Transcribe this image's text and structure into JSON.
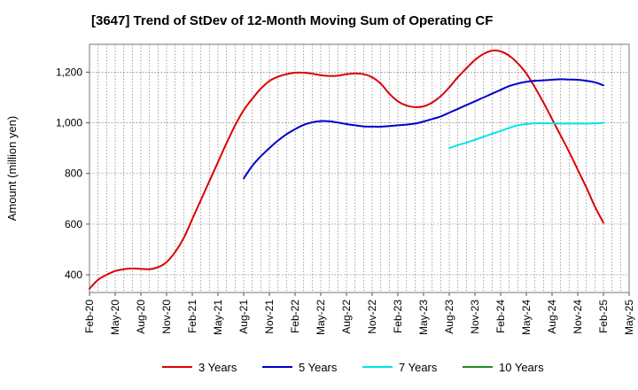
{
  "chart_data": {
    "type": "line",
    "title": "[3647]  Trend of StDev of 12-Month Moving Sum of Operating CF",
    "xlabel": "",
    "ylabel": "Amount (million yen)",
    "ylim": [
      330,
      1310
    ],
    "yticks": [
      400,
      600,
      800,
      1000,
      1200
    ],
    "ytick_labels": [
      "400",
      "600",
      "800",
      "1,000",
      "1,200"
    ],
    "xticks": [
      "Feb-20",
      "May-20",
      "Aug-20",
      "Nov-20",
      "Feb-21",
      "May-21",
      "Aug-21",
      "Nov-21",
      "Feb-22",
      "May-22",
      "Aug-22",
      "Nov-22",
      "Feb-23",
      "May-23",
      "Aug-23",
      "Nov-23",
      "Feb-24",
      "May-24",
      "Aug-24",
      "Nov-24",
      "Feb-25",
      "May-25"
    ],
    "grid": true,
    "legend_position": "bottom",
    "series": [
      {
        "name": "3 Years",
        "color": "#dd0000",
        "start_index": 0,
        "values": [
          345,
          380,
          400,
          415,
          422,
          425,
          423,
          422,
          430,
          450,
          490,
          545,
          620,
          695,
          770,
          845,
          920,
          990,
          1050,
          1095,
          1135,
          1165,
          1182,
          1192,
          1198,
          1198,
          1194,
          1188,
          1185,
          1186,
          1192,
          1195,
          1192,
          1180,
          1155,
          1115,
          1085,
          1068,
          1062,
          1065,
          1080,
          1105,
          1140,
          1180,
          1215,
          1248,
          1272,
          1285,
          1282,
          1265,
          1235,
          1195,
          1140,
          1080,
          1015,
          950,
          885,
          815,
          745,
          670,
          605
        ]
      },
      {
        "name": "5 Years",
        "color": "#0000cc",
        "start_index": 18,
        "values": [
          780,
          830,
          868,
          900,
          930,
          955,
          975,
          992,
          1002,
          1007,
          1006,
          1001,
          995,
          990,
          986,
          985,
          985,
          987,
          990,
          993,
          997,
          1005,
          1015,
          1025,
          1040,
          1055,
          1070,
          1085,
          1100,
          1115,
          1130,
          1145,
          1155,
          1162,
          1166,
          1168,
          1170,
          1172,
          1171,
          1170,
          1166,
          1160,
          1148
        ]
      },
      {
        "name": "7 Years",
        "color": "#00e5ee",
        "start_index": 42,
        "values": [
          900,
          912,
          922,
          933,
          945,
          957,
          968,
          980,
          990,
          995,
          998,
          998,
          998,
          997,
          997,
          997,
          997,
          998,
          1000
        ]
      },
      {
        "name": "10 Years",
        "color": "#228b22",
        "start_index": 0,
        "values": []
      }
    ]
  }
}
